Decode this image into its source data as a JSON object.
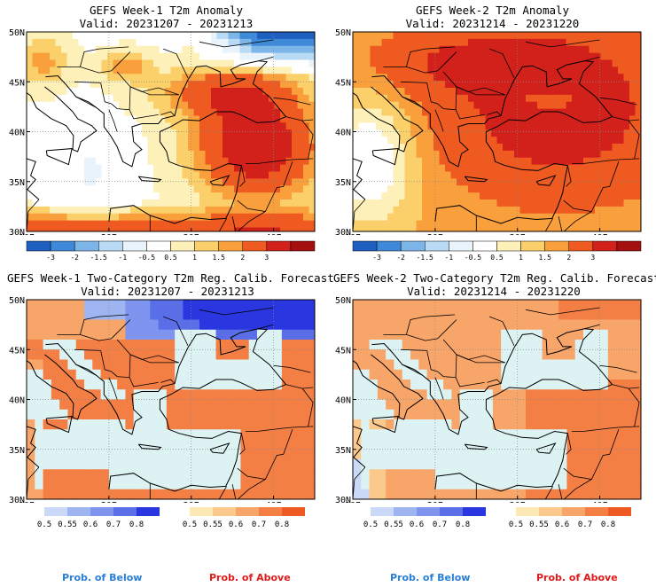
{
  "panels": [
    {
      "id": "p1",
      "title": "GEFS Week-1 T2m Anomaly",
      "valid": "Valid: 20231207 - 20231213",
      "kind": "anom"
    },
    {
      "id": "p2",
      "title": "GEFS Week-2 T2m Anomaly",
      "valid": "Valid: 20231214 - 20231220",
      "kind": "anom"
    },
    {
      "id": "p3",
      "title": "GEFS Week-1 Two-Category T2m Reg. Calib. Forecast",
      "valid": "Valid: 20231207 - 20231213",
      "kind": "prob"
    },
    {
      "id": "p4",
      "title": "GEFS Week-2 Two-Category T2m Reg. Calib. Forecast",
      "valid": "Valid: 20231214 - 20231220",
      "kind": "prob"
    }
  ],
  "lat_labels": [
    "50N",
    "45N",
    "40N",
    "35N",
    "30N"
  ],
  "lon_labels": [
    "10E",
    "20E",
    "30E",
    "40E"
  ],
  "anom_colorbar": {
    "labels": [
      "-3",
      "-2",
      "-1.5",
      "-1",
      "-0.5",
      "0.5",
      "1",
      "1.5",
      "2",
      "3"
    ],
    "colors": [
      "#1f5fc0",
      "#3f8ad8",
      "#7cb5e8",
      "#b8daf4",
      "#e8f3fb",
      "#ffffff",
      "#fdf0b8",
      "#fbd06a",
      "#f9a03c",
      "#ee5a20",
      "#d2201a",
      "#a40f0f"
    ]
  },
  "below_colorbar": {
    "labels": [
      "0.5",
      "0.55",
      "0.6",
      "0.7",
      "0.8"
    ],
    "colors": [
      "#c9d9f7",
      "#9fb5f2",
      "#7f94ee",
      "#5a6ee8",
      "#2a36e0"
    ]
  },
  "above_colorbar": {
    "labels": [
      "0.5",
      "0.55",
      "0.6",
      "0.7",
      "0.8"
    ],
    "colors": [
      "#fde9b3",
      "#fbc98b",
      "#f8a56a",
      "#f47f45",
      "#ef5a22"
    ]
  },
  "prob_below_label": "Prob. of Below",
  "prob_above_label": "Prob. of Above",
  "prob_below_color": "#2a7fd4",
  "prob_above_color": "#e01b1b"
}
